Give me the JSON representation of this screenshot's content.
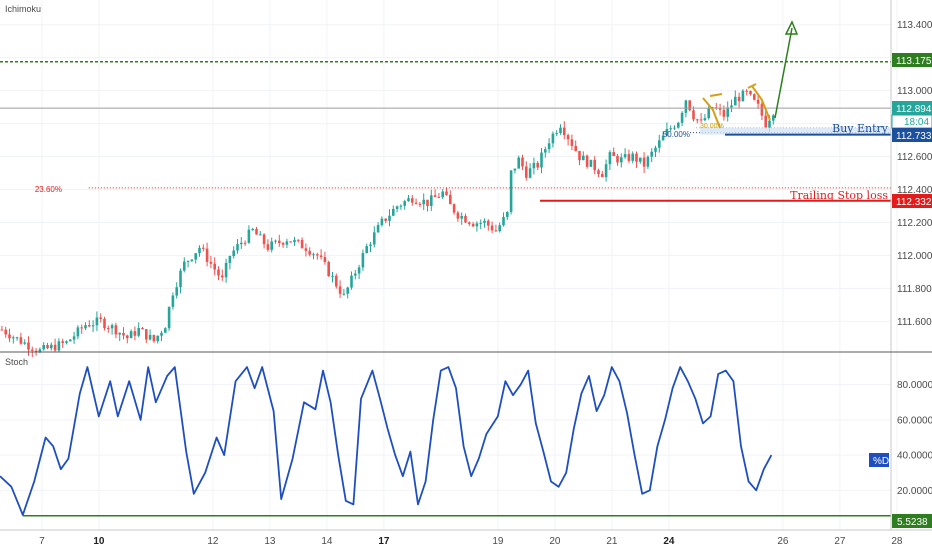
{
  "chart_data": {
    "type": "candlestick",
    "price_pane": {
      "indicator_label": "Ichimoku",
      "y_ticks": [
        "111.600",
        "111.800",
        "112.000",
        "112.200",
        "112.400",
        "112.600",
        "112.800",
        "113.000",
        "113.200",
        "113.400"
      ],
      "ylim": [
        111.42,
        113.55
      ],
      "levels": {
        "target": {
          "value": 113.175,
          "label": "113.175",
          "color": "#2e7d1e",
          "style": "dotted"
        },
        "current": {
          "value": 112.894,
          "label": "112.894",
          "countdown": "18:04",
          "color": "#26a69a"
        },
        "buy_entry": {
          "value": 112.733,
          "label": "112.733",
          "text": "Buy Entry",
          "color": "#1c4f9c"
        },
        "trailing_stop": {
          "value": 112.332,
          "label": "112.332",
          "text": "Trailing Stop loss",
          "color": "#e31b1b"
        },
        "fib_23": {
          "value": 112.41,
          "label": "23.60%",
          "color": "#e31b1b"
        },
        "fib_50": {
          "value": 112.745,
          "label": "50.00%",
          "color": "#1c4f9c"
        },
        "fib_30": {
          "value": 112.775,
          "label": "30.00%",
          "color": "#c8a000"
        }
      },
      "close_path": [
        [
          0,
          111.55
        ],
        [
          5,
          111.48
        ],
        [
          10,
          111.42
        ],
        [
          17,
          111.47
        ],
        [
          22,
          111.58
        ],
        [
          26,
          111.6
        ],
        [
          30,
          111.55
        ],
        [
          33,
          111.5
        ],
        [
          36,
          111.55
        ],
        [
          40,
          111.48
        ],
        [
          43,
          111.58
        ],
        [
          45,
          111.78
        ],
        [
          48,
          111.95
        ],
        [
          52,
          112.05
        ],
        [
          55,
          111.95
        ],
        [
          58,
          111.85
        ],
        [
          60,
          112.0
        ],
        [
          63,
          112.08
        ],
        [
          66,
          112.15
        ],
        [
          70,
          112.05
        ],
        [
          75,
          112.1
        ],
        [
          80,
          112.05
        ],
        [
          83,
          112.0
        ],
        [
          86,
          111.9
        ],
        [
          90,
          111.75
        ],
        [
          93,
          111.9
        ],
        [
          96,
          112.05
        ],
        [
          100,
          112.2
        ],
        [
          104,
          112.3
        ],
        [
          108,
          112.35
        ],
        [
          112,
          112.32
        ],
        [
          116,
          112.38
        ],
        [
          118,
          112.3
        ],
        [
          120,
          112.25
        ],
        [
          124,
          112.2
        ],
        [
          127,
          112.2
        ],
        [
          130,
          112.15
        ],
        [
          133,
          112.25
        ],
        [
          134,
          112.5
        ],
        [
          136,
          112.58
        ],
        [
          138,
          112.5
        ],
        [
          141,
          112.55
        ],
        [
          144,
          112.7
        ],
        [
          147,
          112.8
        ],
        [
          150,
          112.68
        ],
        [
          152,
          112.6
        ],
        [
          155,
          112.55
        ],
        [
          158,
          112.5
        ],
        [
          160,
          112.6
        ],
        [
          163,
          112.58
        ],
        [
          166,
          112.6
        ],
        [
          169,
          112.55
        ],
        [
          172,
          112.65
        ],
        [
          175,
          112.75
        ],
        [
          178,
          112.82
        ],
        [
          180,
          112.95
        ],
        [
          182,
          112.85
        ],
        [
          184,
          112.8
        ],
        [
          187,
          112.9
        ],
        [
          190,
          112.85
        ],
        [
          193,
          112.95
        ],
        [
          196,
          112.98
        ],
        [
          199,
          112.9
        ],
        [
          201,
          112.8
        ],
        [
          203,
          112.88
        ]
      ]
    },
    "stoch_pane": {
      "indicator_label": "Stoch",
      "y_ticks": [
        "20.0000",
        "40.0000",
        "60.0000",
        "80.0000"
      ],
      "ylim": [
        -2,
        98
      ],
      "series_label": "%D",
      "low_level": {
        "value": 5.5238,
        "label": "5.5238"
      },
      "values": [
        [
          0,
          28
        ],
        [
          3,
          22
        ],
        [
          6,
          6
        ],
        [
          9,
          25
        ],
        [
          12,
          50
        ],
        [
          14,
          45
        ],
        [
          16,
          32
        ],
        [
          18,
          38
        ],
        [
          21,
          75
        ],
        [
          23,
          90
        ],
        [
          26,
          62
        ],
        [
          29,
          82
        ],
        [
          31,
          62
        ],
        [
          34,
          82
        ],
        [
          37,
          60
        ],
        [
          39,
          90
        ],
        [
          41,
          70
        ],
        [
          44,
          85
        ],
        [
          46,
          90
        ],
        [
          49,
          42
        ],
        [
          51,
          18
        ],
        [
          54,
          30
        ],
        [
          57,
          50
        ],
        [
          59,
          40
        ],
        [
          62,
          82
        ],
        [
          65,
          90
        ],
        [
          67,
          78
        ],
        [
          69,
          90
        ],
        [
          72,
          65
        ],
        [
          74,
          15
        ],
        [
          77,
          38
        ],
        [
          80,
          70
        ],
        [
          83,
          66
        ],
        [
          85,
          88
        ],
        [
          87,
          70
        ],
        [
          89,
          40
        ],
        [
          91,
          14
        ],
        [
          93,
          12
        ],
        [
          95,
          72
        ],
        [
          98,
          88
        ],
        [
          100,
          72
        ],
        [
          102,
          55
        ],
        [
          104,
          40
        ],
        [
          106,
          28
        ],
        [
          108,
          42
        ],
        [
          110,
          12
        ],
        [
          112,
          25
        ],
        [
          114,
          60
        ],
        [
          116,
          88
        ],
        [
          118,
          90
        ],
        [
          120,
          78
        ],
        [
          122,
          45
        ],
        [
          124,
          28
        ],
        [
          126,
          38
        ],
        [
          128,
          52
        ],
        [
          131,
          62
        ],
        [
          133,
          82
        ],
        [
          135,
          74
        ],
        [
          137,
          80
        ],
        [
          139,
          88
        ],
        [
          141,
          58
        ],
        [
          143,
          42
        ],
        [
          145,
          25
        ],
        [
          147,
          22
        ],
        [
          149,
          30
        ],
        [
          151,
          55
        ],
        [
          153,
          75
        ],
        [
          155,
          85
        ],
        [
          157,
          65
        ],
        [
          159,
          74
        ],
        [
          161,
          90
        ],
        [
          163,
          82
        ],
        [
          165,
          64
        ],
        [
          167,
          40
        ],
        [
          169,
          18
        ],
        [
          171,
          20
        ],
        [
          173,
          45
        ],
        [
          175,
          60
        ],
        [
          177,
          78
        ],
        [
          179,
          90
        ],
        [
          181,
          82
        ],
        [
          183,
          72
        ],
        [
          185,
          58
        ],
        [
          187,
          62
        ],
        [
          189,
          86
        ],
        [
          191,
          88
        ],
        [
          193,
          82
        ],
        [
          195,
          45
        ],
        [
          197,
          25
        ],
        [
          199,
          20
        ],
        [
          201,
          32
        ],
        [
          203,
          40
        ]
      ]
    },
    "x_axis": {
      "labels": [
        {
          "text": "7",
          "pos": 0.5,
          "bold": false
        },
        {
          "text": "10",
          "pos": 15.5,
          "bold": true
        },
        {
          "text": "12",
          "pos": 45.5,
          "bold": false
        },
        {
          "text": "13",
          "pos": 60.5,
          "bold": false
        },
        {
          "text": "14",
          "pos": 75.5,
          "bold": false
        },
        {
          "text": "17",
          "pos": 90.5,
          "bold": true
        },
        {
          "text": "19",
          "pos": 120.5,
          "bold": false
        },
        {
          "text": "20",
          "pos": 135.5,
          "bold": false
        },
        {
          "text": "21",
          "pos": 150.5,
          "bold": false
        },
        {
          "text": "24",
          "pos": 165.5,
          "bold": true
        },
        {
          "text": "26",
          "pos": 195.5,
          "bold": false
        },
        {
          "text": "27",
          "pos": 210.5,
          "bold": false
        },
        {
          "text": "28",
          "pos": 225.5,
          "bold": false
        }
      ]
    },
    "annotations": {
      "arrow_color": "#2e7d1e",
      "pattern_color": "#d4a017"
    }
  }
}
